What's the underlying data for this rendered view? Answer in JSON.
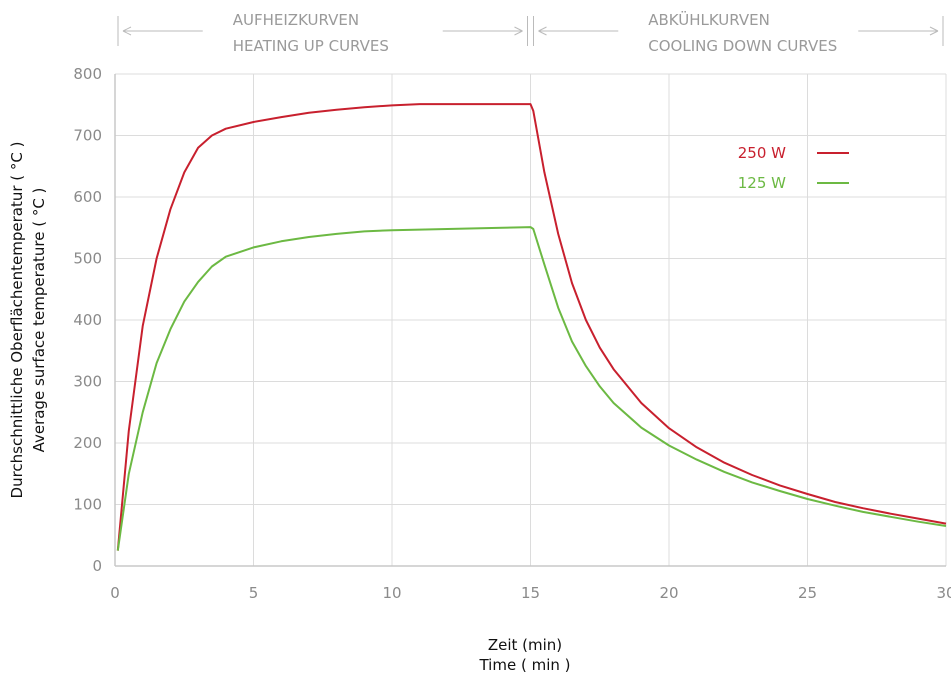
{
  "chart_data": {
    "type": "line",
    "xlabel": [
      "Zeit (min)",
      "Time ( min )"
    ],
    "ylabel": [
      "Durchschnittliche Oberflächentemperatur ( °C )",
      "Average surface temperature ( °C )"
    ],
    "xlim": [
      0,
      30
    ],
    "ylim": [
      0,
      800
    ],
    "x_ticks": [
      0,
      5,
      10,
      15,
      20,
      25,
      30
    ],
    "y_ticks": [
      0,
      100,
      200,
      300,
      400,
      500,
      600,
      700,
      800
    ],
    "grid": true,
    "legend_placement": "top-right",
    "phases": [
      {
        "from": 0,
        "to": 15,
        "label": [
          "AUFHEIZKURVEN",
          "HEATING UP CURVES"
        ]
      },
      {
        "from": 15,
        "to": 30,
        "label": [
          "ABKÜHLKURVEN",
          "COOLING DOWN CURVES"
        ]
      }
    ],
    "series": [
      {
        "name": "250 W",
        "color": "#c8202e",
        "points": [
          [
            0.1,
            25
          ],
          [
            0.5,
            220
          ],
          [
            1,
            390
          ],
          [
            1.5,
            500
          ],
          [
            2,
            580
          ],
          [
            2.5,
            640
          ],
          [
            3,
            680
          ],
          [
            3.5,
            700
          ],
          [
            4,
            711
          ],
          [
            5,
            722
          ],
          [
            6,
            730
          ],
          [
            7,
            737
          ],
          [
            8,
            742
          ],
          [
            9,
            746
          ],
          [
            10,
            749
          ],
          [
            11,
            751
          ],
          [
            12,
            751
          ],
          [
            13,
            751
          ],
          [
            14,
            751
          ],
          [
            15,
            751
          ],
          [
            15.1,
            740
          ],
          [
            15.5,
            640
          ],
          [
            16,
            540
          ],
          [
            16.5,
            460
          ],
          [
            17,
            400
          ],
          [
            17.5,
            355
          ],
          [
            18,
            320
          ],
          [
            19,
            265
          ],
          [
            20,
            224
          ],
          [
            21,
            193
          ],
          [
            22,
            168
          ],
          [
            23,
            148
          ],
          [
            24,
            131
          ],
          [
            25,
            117
          ],
          [
            26,
            104
          ],
          [
            27,
            94
          ],
          [
            28,
            85
          ],
          [
            29,
            77
          ],
          [
            30,
            69
          ]
        ]
      },
      {
        "name": "125 W",
        "color": "#6cb943",
        "points": [
          [
            0.1,
            25
          ],
          [
            0.5,
            150
          ],
          [
            1,
            250
          ],
          [
            1.5,
            330
          ],
          [
            2,
            385
          ],
          [
            2.5,
            430
          ],
          [
            3,
            462
          ],
          [
            3.5,
            487
          ],
          [
            4,
            503
          ],
          [
            5,
            518
          ],
          [
            6,
            528
          ],
          [
            7,
            535
          ],
          [
            8,
            540
          ],
          [
            9,
            544
          ],
          [
            10,
            546
          ],
          [
            11,
            547
          ],
          [
            12,
            548
          ],
          [
            13,
            549
          ],
          [
            14,
            550
          ],
          [
            15,
            551
          ],
          [
            15.1,
            548
          ],
          [
            15.5,
            490
          ],
          [
            16,
            420
          ],
          [
            16.5,
            365
          ],
          [
            17,
            325
          ],
          [
            17.5,
            292
          ],
          [
            18,
            265
          ],
          [
            19,
            225
          ],
          [
            20,
            196
          ],
          [
            21,
            173
          ],
          [
            22,
            153
          ],
          [
            23,
            136
          ],
          [
            24,
            122
          ],
          [
            25,
            109
          ],
          [
            26,
            98
          ],
          [
            27,
            88
          ],
          [
            28,
            80
          ],
          [
            29,
            72
          ],
          [
            30,
            65
          ]
        ]
      }
    ]
  }
}
